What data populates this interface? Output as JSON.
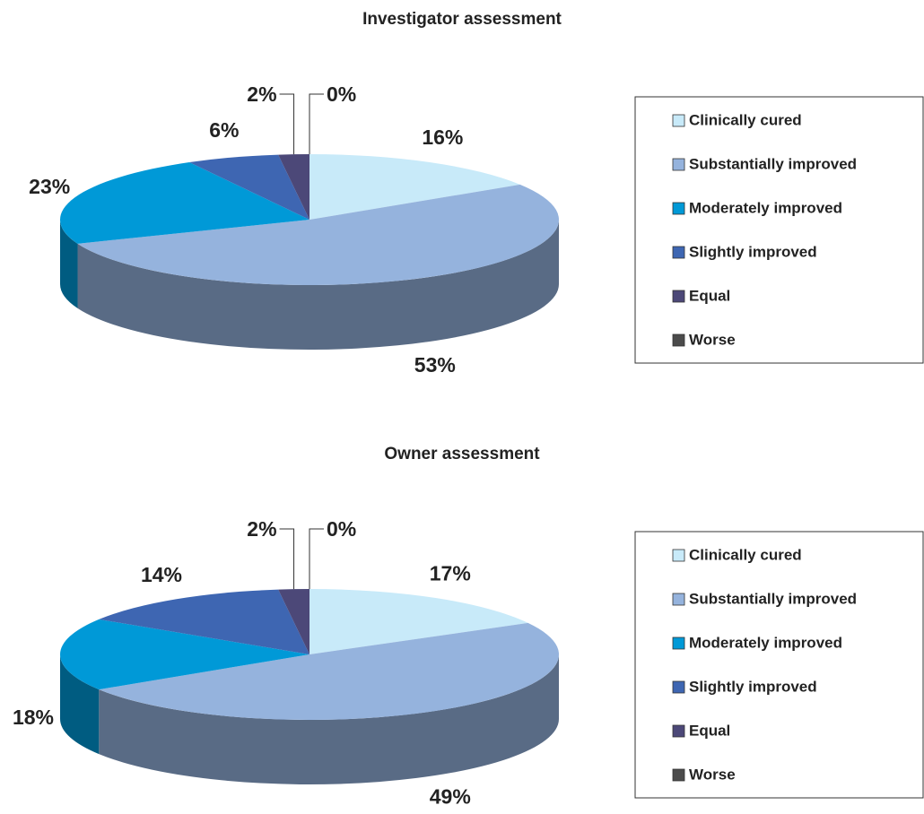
{
  "chart_data": [
    {
      "type": "pie",
      "title": "Investigator assessment",
      "categories": [
        "Clinically cured",
        "Substantially improved",
        "Moderately improved",
        "Slightly improved",
        "Equal",
        "Worse"
      ],
      "values": [
        16,
        53,
        23,
        6,
        2,
        0
      ],
      "value_labels": [
        "16%",
        "53%",
        "23%",
        "6%",
        "2%",
        "0%"
      ],
      "colors": [
        "#c8eaf9",
        "#95b3dd",
        "#0099d7",
        "#3e66b2",
        "#4c4878",
        "#4b4b4b"
      ]
    },
    {
      "type": "pie",
      "title": "Owner assessment",
      "categories": [
        "Clinically cured",
        "Substantially improved",
        "Moderately improved",
        "Slightly improved",
        "Equal",
        "Worse"
      ],
      "values": [
        17,
        49,
        18,
        14,
        2,
        0
      ],
      "value_labels": [
        "17%",
        "49%",
        "18%",
        "14%",
        "2%",
        "0%"
      ],
      "colors": [
        "#c8eaf9",
        "#95b3dd",
        "#0099d7",
        "#3e66b2",
        "#4c4878",
        "#4b4b4b"
      ]
    }
  ]
}
